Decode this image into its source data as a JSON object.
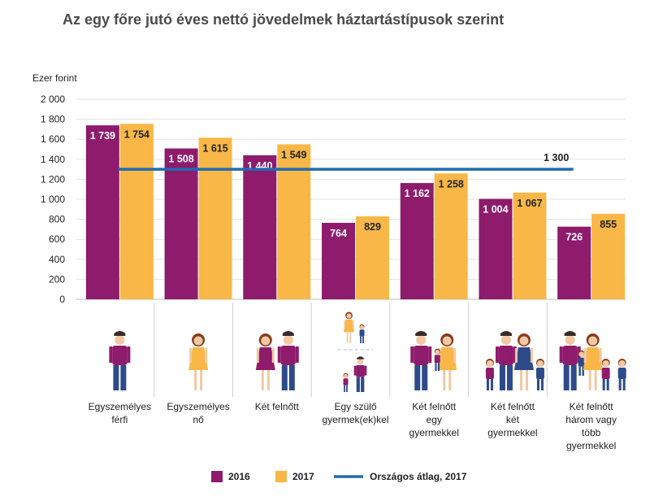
{
  "chart_data": {
    "type": "bar",
    "title": "Az egy főre jutó éves nettó jövedelmek háztartástípusok szerint",
    "ylabel": "Ezer forint",
    "ylim": [
      0,
      2000
    ],
    "yticks": [
      0,
      200,
      400,
      600,
      800,
      1000,
      1200,
      1400,
      1600,
      1800,
      2000
    ],
    "ytick_labels": [
      "0",
      "200",
      "400",
      "600",
      "800",
      "1 000",
      "1 200",
      "1 400",
      "1 600",
      "1 800",
      "2 000"
    ],
    "categories": [
      [
        "Egyszemélyes",
        "férfi"
      ],
      [
        "Egyszemélyes",
        "nő"
      ],
      [
        "Két felnőtt"
      ],
      [
        "Egy szülő",
        "gyermek(ek)kel"
      ],
      [
        "Két felnőtt",
        "egy",
        "gyermekkel"
      ],
      [
        "Két felnőtt",
        "két",
        "gyermekkel"
      ],
      [
        "Két felnőtt",
        "három vagy",
        "több",
        "gyermekkel"
      ]
    ],
    "series": [
      {
        "name": "2016",
        "color": "#8e1b6c",
        "values": [
          1739,
          1508,
          1440,
          764,
          1162,
          1004,
          726
        ],
        "labels": [
          "1 739",
          "1 508",
          "1 440",
          "764",
          "1 162",
          "1 004",
          "726"
        ]
      },
      {
        "name": "2017",
        "color": "#f8b746",
        "values": [
          1754,
          1615,
          1549,
          829,
          1258,
          1067,
          855
        ],
        "labels": [
          "1 754",
          "1 615",
          "1 549",
          "829",
          "1 258",
          "1 067",
          "855"
        ]
      }
    ],
    "reference_line": {
      "name": "Országos átlag, 2017",
      "value": 1300,
      "label": "1 300",
      "color": "#1f6bb0"
    },
    "legend_placement": "bottom",
    "grid": true,
    "category_icons": [
      "man-icon",
      "woman-icon",
      "two-adults-icon",
      "single-parent-icon",
      "family-one-child-icon",
      "family-two-children-icon",
      "family-three-children-icon"
    ]
  }
}
